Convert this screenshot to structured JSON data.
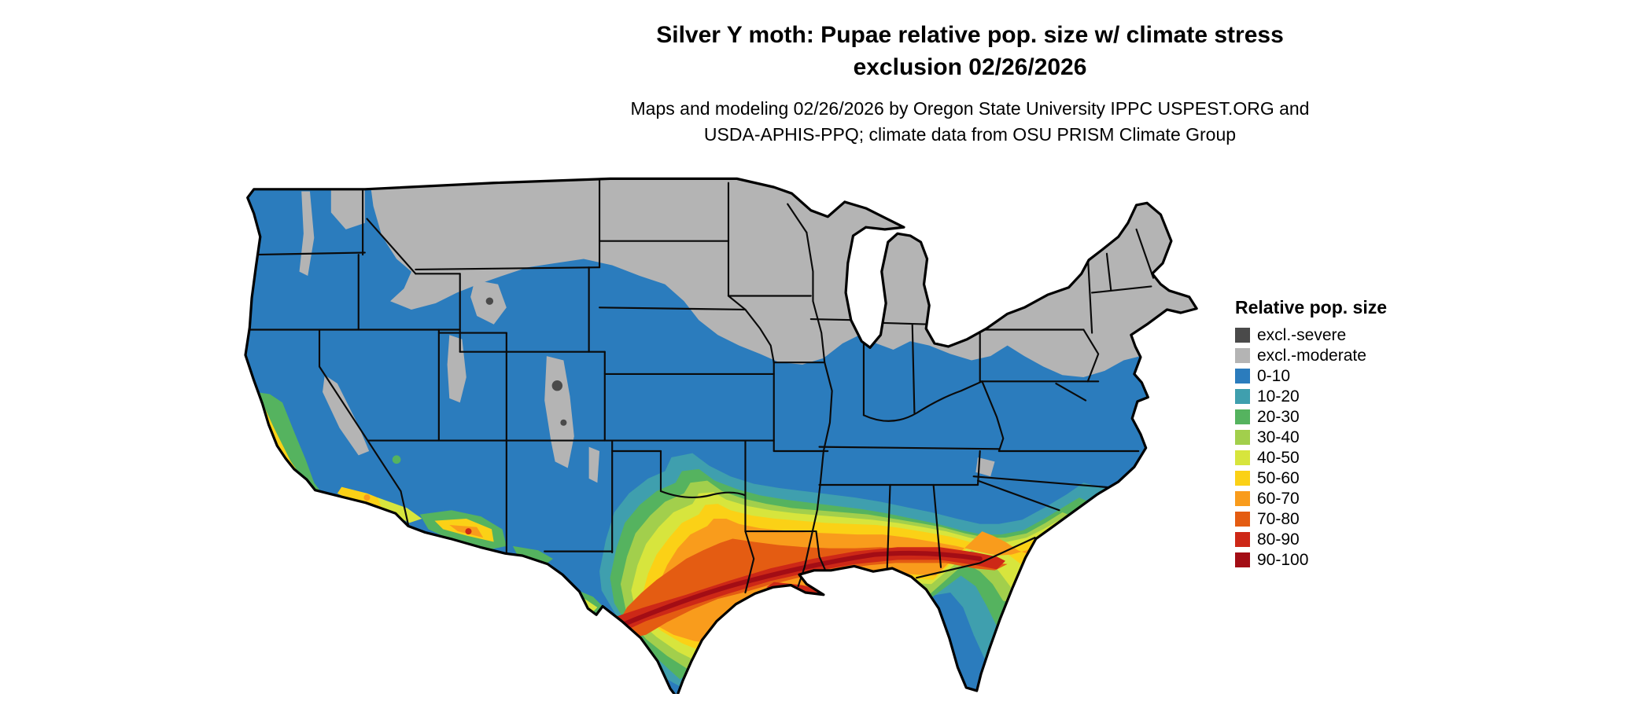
{
  "title": {
    "line1": "Silver Y moth: Pupae relative pop. size w/ climate stress",
    "line2": "exclusion 02/26/2026"
  },
  "subtitle": {
    "line1": "Maps and modeling 02/26/2026 by Oregon State University IPPC USPEST.ORG and",
    "line2": "USDA-APHIS-PPQ; climate data from OSU PRISM Climate Group"
  },
  "legend": {
    "title": "Relative pop. size",
    "items": [
      {
        "label": "excl.-severe",
        "color": "#4a4a4a"
      },
      {
        "label": "excl.-moderate",
        "color": "#b4b4b4"
      },
      {
        "label": "0-10",
        "color": "#2b7cbd"
      },
      {
        "label": "10-20",
        "color": "#3f9fae"
      },
      {
        "label": "20-30",
        "color": "#55b35f"
      },
      {
        "label": "30-40",
        "color": "#a2cf4c"
      },
      {
        "label": "40-50",
        "color": "#d7e53d"
      },
      {
        "label": "50-60",
        "color": "#fbd116"
      },
      {
        "label": "60-70",
        "color": "#f99c1c"
      },
      {
        "label": "70-80",
        "color": "#e45c12"
      },
      {
        "label": "80-90",
        "color": "#cd2817"
      },
      {
        "label": "90-100",
        "color": "#a30d15"
      }
    ]
  }
}
